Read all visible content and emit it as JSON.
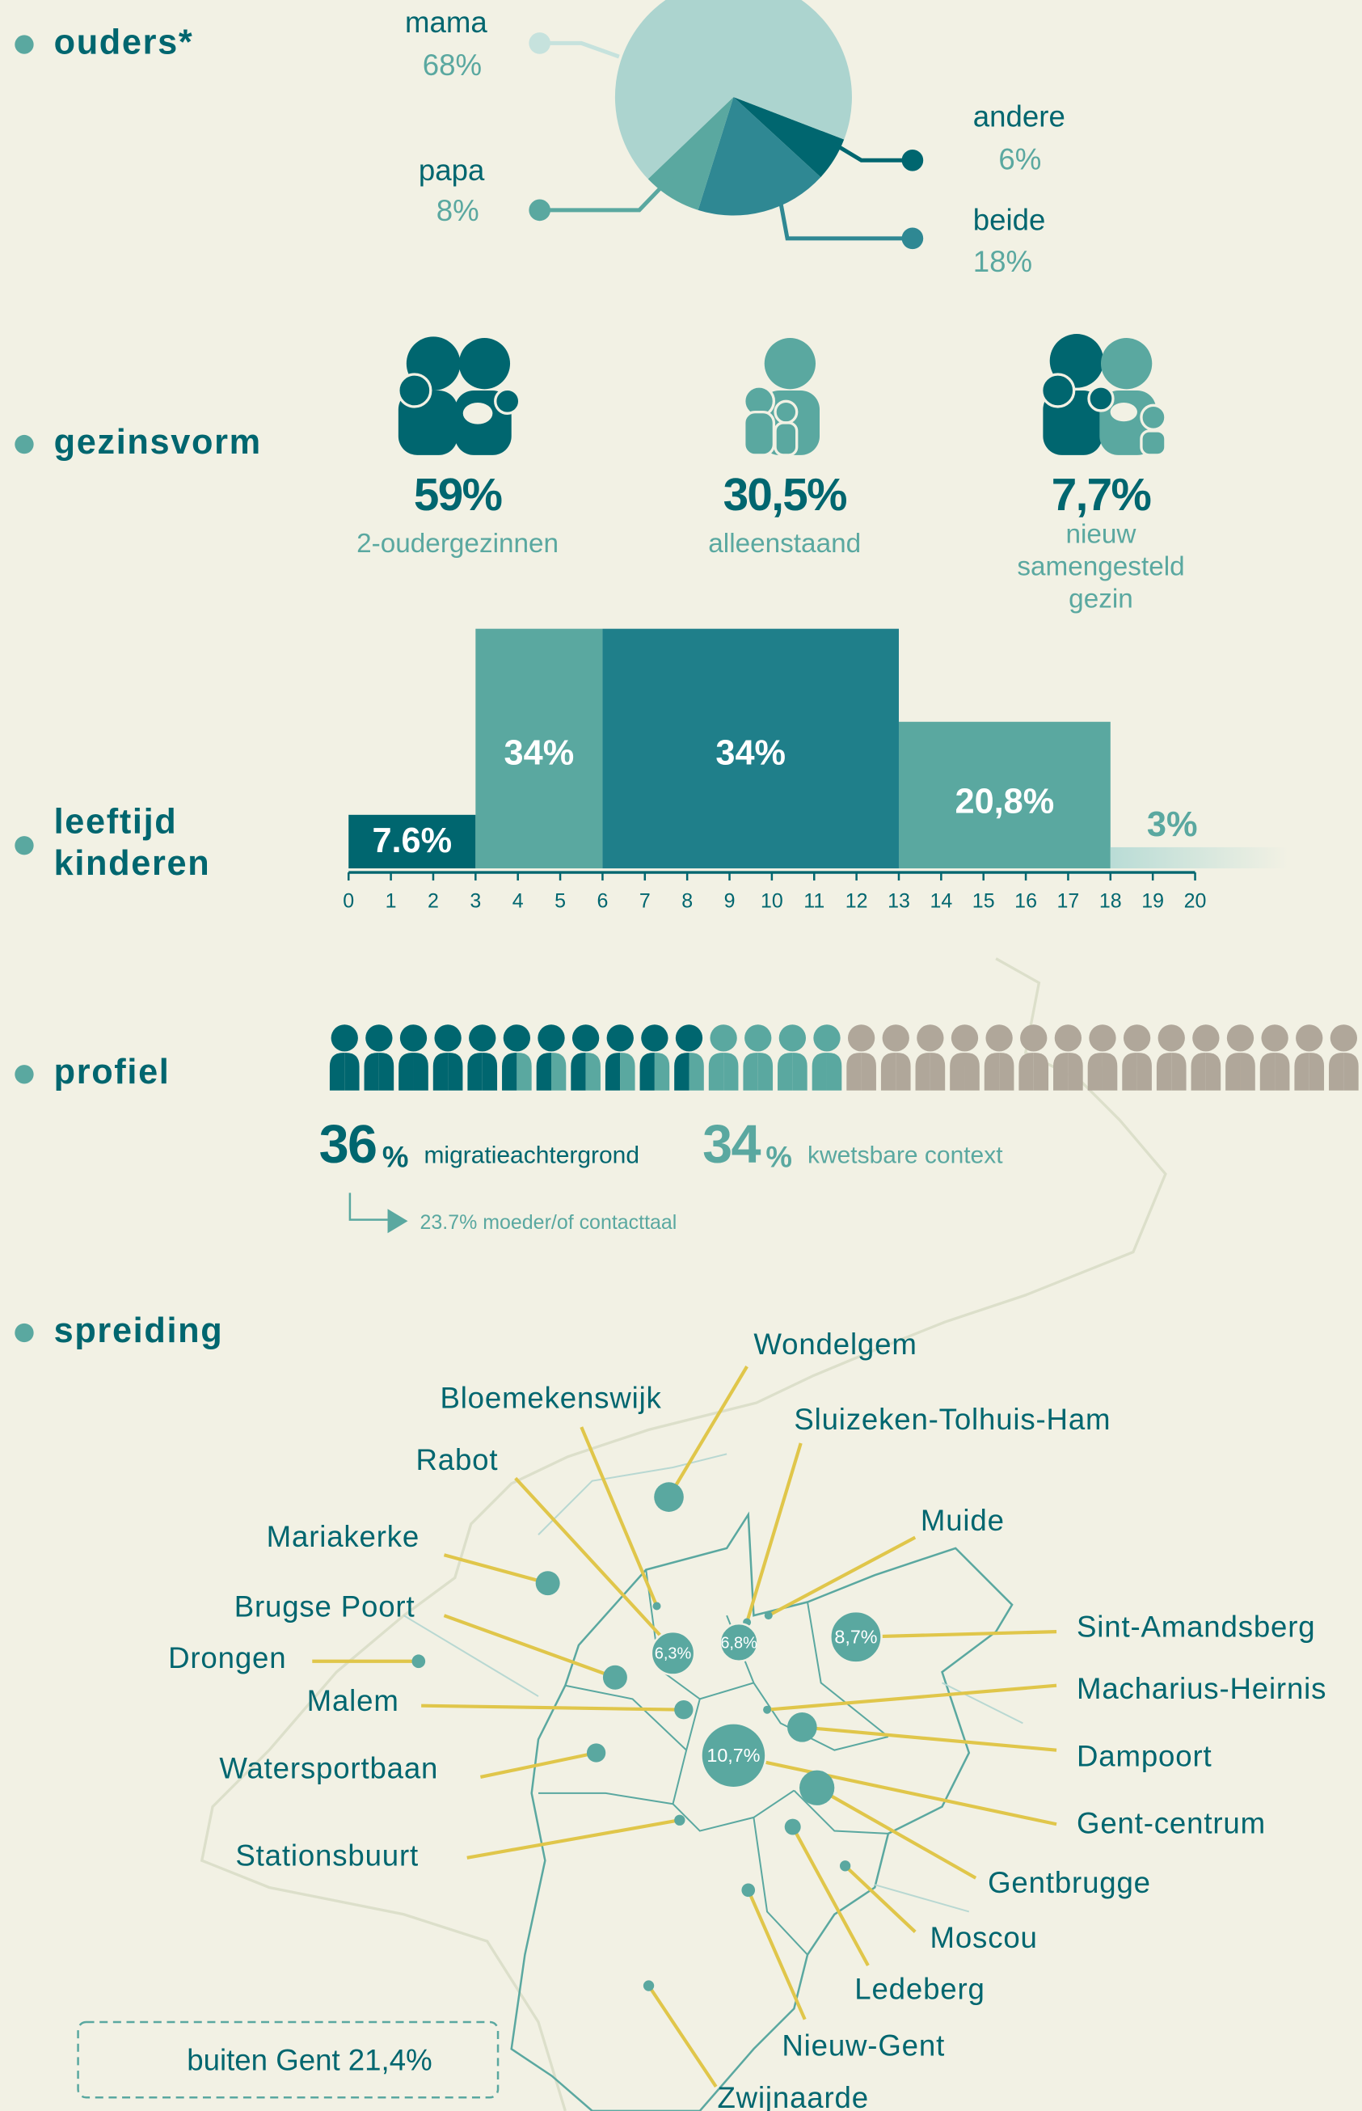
{
  "ouders": {
    "label": "ouders*",
    "type": "pie",
    "categories": [
      "andere",
      "beide",
      "papa",
      "mama"
    ],
    "values": [
      6,
      18,
      8,
      68
    ],
    "value_labels": [
      "6%",
      "18%",
      "8%",
      "68%"
    ],
    "colors": [
      "#00666f",
      "#2f8893",
      "#5aa8a0",
      "#acd4cf"
    ]
  },
  "gezinsvorm": {
    "label": "gezinsvorm",
    "items": [
      {
        "value": "59%",
        "text": [
          "2-oudergezinnen"
        ]
      },
      {
        "value": "30,5%",
        "text": [
          "alleenstaand"
        ]
      },
      {
        "value": "7,7%",
        "text": [
          "nieuw",
          "samengesteld",
          "gezin"
        ]
      }
    ]
  },
  "leeftijd": {
    "label": [
      "leeftijd",
      "kinderen"
    ],
    "type": "histogram",
    "bins": [
      0,
      3,
      6,
      13,
      18,
      20
    ],
    "values": [
      7.6,
      34,
      34,
      20.8,
      3
    ],
    "value_labels": [
      "7.6%",
      "34%",
      "34%",
      "20,8%",
      "3%"
    ],
    "colors": [
      "#00666f",
      "#5aa8a0",
      "#1f7f8a",
      "#5aa8a0",
      "#b9dcd6"
    ],
    "xlim": [
      0,
      20
    ],
    "xticks": [
      0,
      1,
      2,
      3,
      4,
      5,
      6,
      7,
      8,
      9,
      10,
      11,
      12,
      13,
      14,
      15,
      16,
      17,
      18,
      19,
      20
    ]
  },
  "profiel": {
    "label": "profiel",
    "stats": [
      {
        "value": "36",
        "unit": "%",
        "text": "migratieachtergrond"
      },
      {
        "value": "34",
        "unit": "%",
        "text": "kwetsbare context"
      }
    ],
    "note": "23.7% moeder/of contacttaal"
  },
  "spreiding": {
    "label": "spreiding",
    "places": [
      "Wondelgem",
      "Bloemekenswijk",
      "Sluizeken-Tolhuis-Ham",
      "Rabot",
      "Muide",
      "Mariakerke",
      "Brugse Poort",
      "Drongen",
      "Sint-Amandsberg",
      "Malem",
      "Macharius-Heirnis",
      "Dampoort",
      "Watersportbaan",
      "Gent-centrum",
      "Gentbrugge",
      "Stationsbuurt",
      "Moscou",
      "Ledeberg",
      "Nieuw-Gent",
      "Zwijnaarde"
    ],
    "bubbles": [
      "6,3%",
      "6,8%",
      "8,7%",
      "10,7%"
    ],
    "outside": "buiten Gent 21,4%"
  }
}
